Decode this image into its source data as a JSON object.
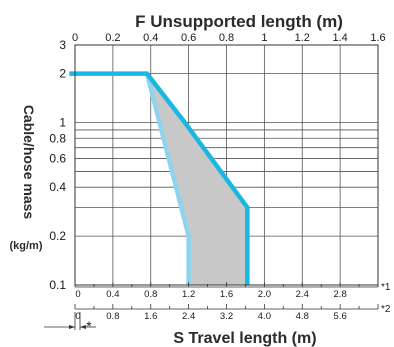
{
  "chart_data": {
    "type": "area",
    "top_axis": {
      "title": "F Unsupported length (m)",
      "ticks": [
        0,
        0.2,
        0.4,
        0.6,
        0.8,
        1,
        1.2,
        1.4,
        1.6
      ],
      "tick_labels": [
        "0",
        "0.2",
        "0.4",
        "0.6",
        "0.8",
        "1",
        "1.2",
        "1.4",
        "1.6"
      ],
      "range": [
        0,
        1.6
      ]
    },
    "y_axis": {
      "title": "Cable/hose mass",
      "unit": "(kg/m)",
      "scale": "log",
      "range": [
        0.1,
        3
      ],
      "labeled_ticks": [
        0.1,
        0.2,
        0.4,
        0.6,
        0.8,
        1,
        2,
        3
      ],
      "tick_labels": [
        "0.1",
        "0.2",
        "0.4",
        "0.6",
        "0.8",
        "1",
        "2",
        "3"
      ],
      "minor_ticks": [
        0.3,
        0.5,
        0.7,
        0.9
      ]
    },
    "bottom_axis_1": {
      "ticks": [
        0,
        0.4,
        0.8,
        1.2,
        1.6,
        2.0,
        2.4,
        2.8
      ],
      "tick_labels": [
        "0",
        "0.4",
        "0.8",
        "1.2",
        "1.6",
        "2.0",
        "2.4",
        "2.8"
      ],
      "range": [
        0,
        3.2
      ],
      "note": "*1"
    },
    "bottom_axis_2": {
      "ticks": [
        0,
        0.8,
        1.6,
        2.4,
        3.2,
        4.0,
        4.8,
        5.6
      ],
      "tick_labels": [
        "0",
        "0.8",
        "1.6",
        "2.4",
        "3.2",
        "4.0",
        "4.8",
        "5.6"
      ],
      "range": [
        0,
        6.4
      ],
      "note": "*2",
      "title": "S Travel length (m)"
    },
    "star_label": "*",
    "series": [
      {
        "color": "#1ab8e0",
        "points": [
          [
            -0.03,
            2
          ],
          [
            0.38,
            2
          ],
          [
            0.58,
            1
          ],
          [
            0.91,
            0.3
          ],
          [
            0.91,
            0.1
          ]
        ]
      },
      {
        "color": "#8fd4ef",
        "points": [
          [
            0.38,
            2
          ],
          [
            0.6,
            0.2
          ],
          [
            0.6,
            0.1
          ]
        ]
      }
    ],
    "shaded_region": {
      "fill": "#c8c8c8",
      "points": [
        [
          0.38,
          2
        ],
        [
          0.58,
          1
        ],
        [
          0.91,
          0.3
        ],
        [
          0.91,
          0.1
        ],
        [
          0.6,
          0.1
        ],
        [
          0.6,
          0.2
        ]
      ]
    },
    "grid": true
  }
}
